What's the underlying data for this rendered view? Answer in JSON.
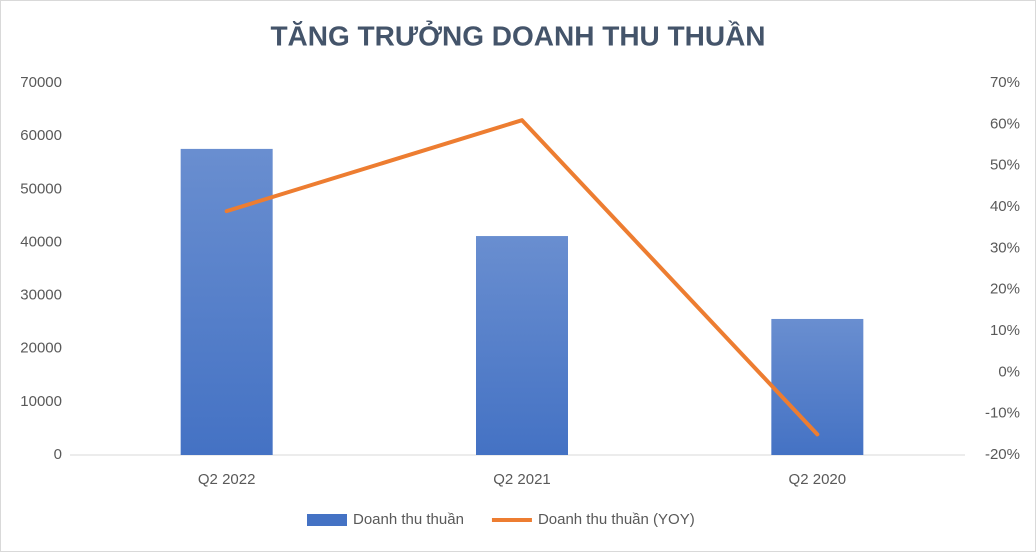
{
  "chart_data": {
    "type": "bar-line",
    "title": "TĂNG TRƯỞNG DOANH THU THUẦN",
    "categories": [
      "Q2 2022",
      "Q2 2021",
      "Q2 2020"
    ],
    "series": [
      {
        "name": "Doanh thu thuần",
        "type": "bar",
        "color": "#4472c4",
        "values": [
          57600,
          41200,
          25600
        ]
      },
      {
        "name": "Doanh thu thuần (YOY)",
        "type": "line",
        "color": "#ed7d31",
        "axis": "y2",
        "values": [
          39,
          61,
          -15
        ]
      }
    ],
    "ylim": [
      0,
      70000
    ],
    "yticks": [
      0,
      10000,
      20000,
      30000,
      40000,
      50000,
      60000,
      70000
    ],
    "y2lim": [
      -20,
      70
    ],
    "y2ticks": [
      {
        "value": -20,
        "label": "-20%"
      },
      {
        "value": -10,
        "label": "-10%"
      },
      {
        "value": 0,
        "label": "0%"
      },
      {
        "value": 10,
        "label": "10%"
      },
      {
        "value": 20,
        "label": "20%"
      },
      {
        "value": 30,
        "label": "30%"
      },
      {
        "value": 40,
        "label": "40%"
      },
      {
        "value": 50,
        "label": "50%"
      },
      {
        "value": 60,
        "label": "60%"
      },
      {
        "value": 70,
        "label": "70%"
      }
    ],
    "grid": false,
    "legend": "bottom"
  }
}
